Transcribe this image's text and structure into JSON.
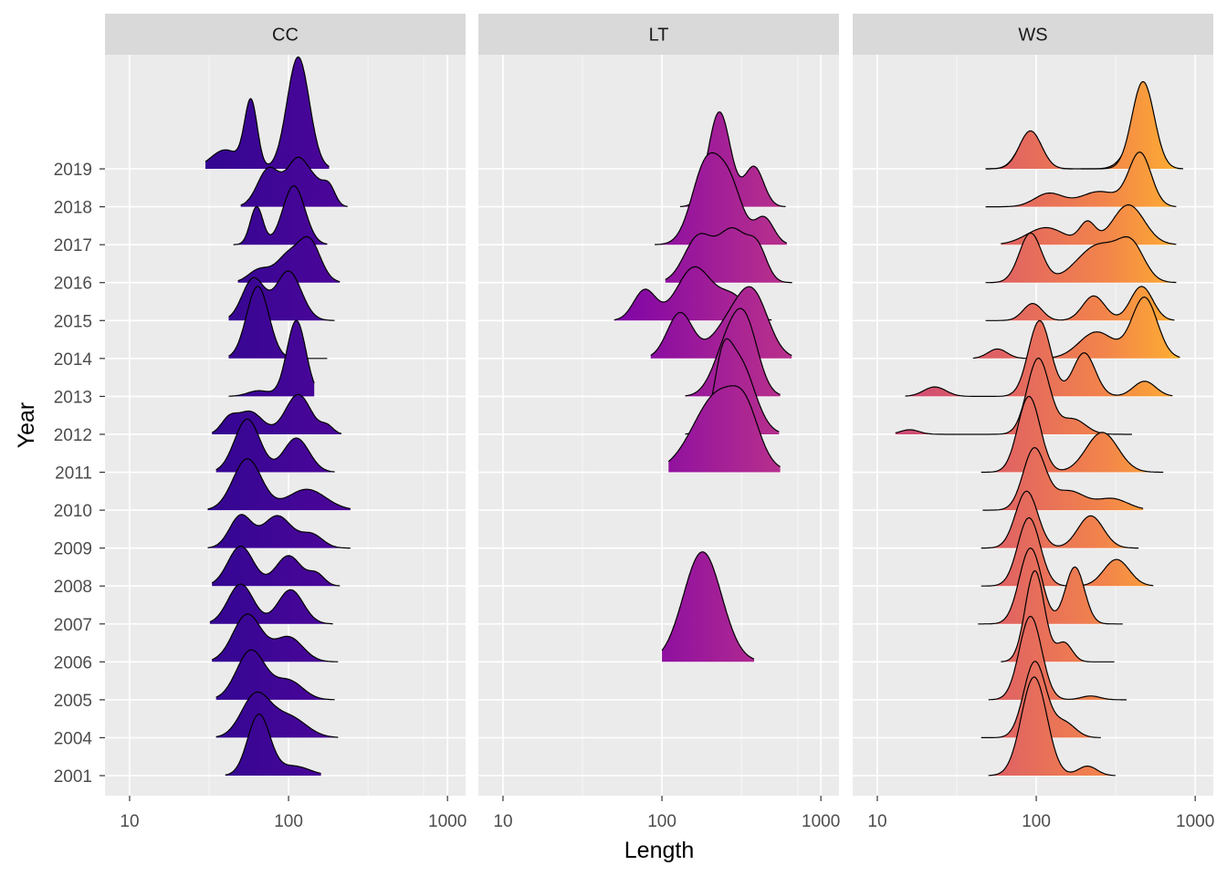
{
  "chart_data": {
    "type": "ridgeline",
    "xlabel": "Length",
    "ylabel": "Year",
    "x_scale": "log10",
    "xlim": [
      7,
      1300
    ],
    "x_ticks": [
      10,
      100,
      1000
    ],
    "x_tick_labels": [
      "10",
      "100",
      "1000"
    ],
    "years": [
      "2001",
      "2004",
      "2005",
      "2006",
      "2007",
      "2008",
      "2009",
      "2010",
      "2011",
      "2012",
      "2013",
      "2014",
      "2015",
      "2016",
      "2017",
      "2018",
      "2019"
    ],
    "colors": {
      "panel_background": "#ebebeb",
      "strip_background": "#d9d9d9",
      "grid": "#ffffff",
      "gradient_low": "#6a00a8",
      "gradient_mid": "#cc4778",
      "gradient_high": "#f0f921"
    },
    "gradient_stops": [
      {
        "offset": 0.0,
        "color": "#0d0887"
      },
      {
        "offset": 0.5,
        "color": "#7e03a8"
      },
      {
        "offset": 0.62,
        "color": "#b12a90"
      },
      {
        "offset": 0.72,
        "color": "#cc4778"
      },
      {
        "offset": 0.82,
        "color": "#e16462"
      },
      {
        "offset": 0.9,
        "color": "#f2844b"
      },
      {
        "offset": 0.95,
        "color": "#fca636"
      },
      {
        "offset": 1.0,
        "color": "#f0f921"
      }
    ],
    "panels": [
      {
        "name": "CC",
        "ridges": [
          {
            "year": "2001",
            "range": [
              40,
              160
            ],
            "modes": [
              [
                65,
                0.07,
                1.6
              ],
              [
                108,
                0.1,
                0.25
              ]
            ]
          },
          {
            "year": "2004",
            "range": [
              35,
              205
            ],
            "modes": [
              [
                62,
                0.09,
                1.1
              ],
              [
                100,
                0.11,
                0.55
              ]
            ]
          },
          {
            "year": "2005",
            "range": [
              35,
              195
            ],
            "modes": [
              [
                58,
                0.09,
                1.3
              ],
              [
                100,
                0.09,
                0.5
              ]
            ]
          },
          {
            "year": "2006",
            "range": [
              33,
              205
            ],
            "modes": [
              [
                55,
                0.09,
                1.25
              ],
              [
                100,
                0.09,
                0.65
              ]
            ]
          },
          {
            "year": "2007",
            "range": [
              32,
              190
            ],
            "modes": [
              [
                50,
                0.08,
                1.05
              ],
              [
                103,
                0.08,
                0.9
              ]
            ]
          },
          {
            "year": "2008",
            "range": [
              33,
              210
            ],
            "modes": [
              [
                50,
                0.08,
                1.05
              ],
              [
                100,
                0.08,
                0.8
              ],
              [
                150,
                0.05,
                0.3
              ]
            ]
          },
          {
            "year": "2009",
            "range": [
              31,
              245
            ],
            "modes": [
              [
                50,
                0.07,
                0.85
              ],
              [
                85,
                0.09,
                0.85
              ],
              [
                140,
                0.07,
                0.35
              ]
            ]
          },
          {
            "year": "2010",
            "range": [
              31,
              245
            ],
            "modes": [
              [
                55,
                0.09,
                1.35
              ],
              [
                130,
                0.12,
                0.55
              ]
            ]
          },
          {
            "year": "2011",
            "range": [
              35,
              195
            ],
            "modes": [
              [
                55,
                0.08,
                1.4
              ],
              [
                112,
                0.08,
                0.9
              ]
            ]
          },
          {
            "year": "2012",
            "range": [
              33,
              215
            ],
            "modes": [
              [
                42,
                0.05,
                0.35
              ],
              [
                57,
                0.08,
                0.6
              ],
              [
                115,
                0.08,
                1.05
              ],
              [
                175,
                0.04,
                0.2
              ]
            ]
          },
          {
            "year": "2013",
            "range": [
              42,
              145
            ],
            "modes": [
              [
                65,
                0.07,
                0.15
              ],
              [
                112,
                0.06,
                2.0
              ]
            ]
          },
          {
            "year": "2014",
            "range": [
              42,
              175
            ],
            "modes": [
              [
                64,
                0.07,
                1.9
              ]
            ]
          },
          {
            "year": "2015",
            "range": [
              42,
              195
            ],
            "modes": [
              [
                60,
                0.07,
                1.1
              ],
              [
                100,
                0.08,
                1.3
              ]
            ]
          },
          {
            "year": "2016",
            "range": [
              48,
              210
            ],
            "modes": [
              [
                66,
                0.07,
                0.35
              ],
              [
                98,
                0.07,
                0.65
              ],
              [
                135,
                0.07,
                1.1
              ]
            ]
          },
          {
            "year": "2017",
            "range": [
              45,
              175
            ],
            "modes": [
              [
                63,
                0.04,
                1.0
              ],
              [
                108,
                0.07,
                1.55
              ]
            ]
          },
          {
            "year": "2018",
            "range": [
              50,
              235
            ],
            "modes": [
              [
                75,
                0.07,
                1.0
              ],
              [
                115,
                0.07,
                1.25
              ],
              [
                150,
                0.05,
                0.4
              ],
              [
                180,
                0.04,
                0.5
              ]
            ]
          },
          {
            "year": "2019",
            "range": [
              30,
              180
            ],
            "modes": [
              [
                40,
                0.09,
                0.5
              ],
              [
                58,
                0.04,
                1.75
              ],
              [
                115,
                0.07,
                2.95
              ]
            ]
          }
        ]
      },
      {
        "name": "LT",
        "ridges": [
          {
            "year": "2006",
            "range": [
              100,
              380
            ],
            "modes": [
              [
                180,
                0.12,
                2.9
              ]
            ]
          },
          {
            "year": "2011",
            "range": [
              110,
              555
            ],
            "modes": [
              [
                230,
                0.16,
                2.1
              ],
              [
                340,
                0.08,
                0.8
              ]
            ]
          },
          {
            "year": "2012",
            "range": [
              140,
              545
            ],
            "modes": [
              [
                240,
                0.05,
                1.1
              ],
              [
                300,
                0.1,
                2.0
              ]
            ]
          },
          {
            "year": "2013",
            "range": [
              140,
              555
            ],
            "modes": [
              [
                260,
                0.09,
                1.3
              ],
              [
                340,
                0.08,
                1.6
              ]
            ]
          },
          {
            "year": "2014",
            "range": [
              85,
              655
            ],
            "modes": [
              [
                130,
                0.08,
                1.2
              ],
              [
                250,
                0.1,
                0.7
              ],
              [
                370,
                0.1,
                1.7
              ]
            ]
          },
          {
            "year": "2015",
            "range": [
              50,
              490
            ],
            "modes": [
              [
                78,
                0.07,
                0.8
              ],
              [
                160,
                0.11,
                1.4
              ],
              [
                280,
                0.09,
                0.6
              ]
            ]
          },
          {
            "year": "2016",
            "range": [
              105,
              660
            ],
            "modes": [
              [
                170,
                0.09,
                1.2
              ],
              [
                280,
                0.09,
                1.35
              ],
              [
                400,
                0.06,
                0.8
              ]
            ]
          },
          {
            "year": "2017",
            "range": [
              90,
              610
            ],
            "modes": [
              [
                190,
                0.09,
                2.1
              ],
              [
                270,
                0.08,
                1.4
              ],
              [
                440,
                0.06,
                0.7
              ]
            ]
          },
          {
            "year": "2018",
            "range": [
              130,
              600
            ],
            "modes": [
              [
                230,
                0.07,
                2.5
              ],
              [
                380,
                0.06,
                1.05
              ]
            ]
          }
        ]
      },
      {
        "name": "WS",
        "ridges": [
          {
            "year": "2001",
            "range": [
              50,
              315
            ],
            "modes": [
              [
                97,
                0.08,
                2.6
              ],
              [
                210,
                0.06,
                0.25
              ]
            ]
          },
          {
            "year": "2004",
            "range": [
              45,
              255
            ],
            "modes": [
              [
                98,
                0.07,
                2.0
              ],
              [
                150,
                0.07,
                0.4
              ]
            ]
          },
          {
            "year": "2005",
            "range": [
              50,
              370
            ],
            "modes": [
              [
                92,
                0.07,
                2.2
              ],
              [
                220,
                0.06,
                0.1
              ]
            ]
          },
          {
            "year": "2006",
            "range": [
              60,
              310
            ],
            "modes": [
              [
                98,
                0.06,
                2.4
              ],
              [
                150,
                0.05,
                0.5
              ]
            ]
          },
          {
            "year": "2007",
            "range": [
              43,
              350
            ],
            "modes": [
              [
                92,
                0.07,
                2.0
              ],
              [
                175,
                0.06,
                1.5
              ]
            ]
          },
          {
            "year": "2008",
            "range": [
              45,
              545
            ],
            "modes": [
              [
                90,
                0.07,
                1.8
              ],
              [
                320,
                0.08,
                0.7
              ]
            ]
          },
          {
            "year": "2009",
            "range": [
              45,
              440
            ],
            "modes": [
              [
                87,
                0.07,
                1.5
              ],
              [
                220,
                0.08,
                0.85
              ]
            ]
          },
          {
            "year": "2010",
            "range": [
              46,
              470
            ],
            "modes": [
              [
                97,
                0.07,
                1.6
              ],
              [
                160,
                0.1,
                0.5
              ],
              [
                300,
                0.1,
                0.3
              ]
            ]
          },
          {
            "year": "2011",
            "range": [
              45,
              630
            ],
            "modes": [
              [
                90,
                0.07,
                2.0
              ],
              [
                260,
                0.1,
                1.05
              ]
            ]
          },
          {
            "year": "2012",
            "range": [
              13,
              400
            ],
            "modes": [
              [
                16,
                0.06,
                0.12
              ],
              [
                103,
                0.07,
                2.0
              ],
              [
                170,
                0.08,
                0.4
              ]
            ]
          },
          {
            "year": "2013",
            "range": [
              15,
              720
            ],
            "modes": [
              [
                23,
                0.07,
                0.25
              ],
              [
                105,
                0.07,
                2.0
              ],
              [
                200,
                0.07,
                1.15
              ],
              [
                480,
                0.07,
                0.4
              ]
            ]
          },
          {
            "year": "2014",
            "range": [
              40,
              800
            ],
            "modes": [
              [
                57,
                0.06,
                0.25
              ],
              [
                240,
                0.11,
                0.7
              ],
              [
                480,
                0.08,
                1.6
              ]
            ]
          },
          {
            "year": "2015",
            "range": [
              48,
              740
            ],
            "modes": [
              [
                95,
                0.06,
                0.45
              ],
              [
                230,
                0.07,
                0.65
              ],
              [
                460,
                0.07,
                0.9
              ]
            ]
          },
          {
            "year": "2016",
            "range": [
              48,
              760
            ],
            "modes": [
              [
                92,
                0.07,
                1.3
              ],
              [
                250,
                0.14,
                1.0
              ],
              [
                400,
                0.08,
                0.8
              ]
            ]
          },
          {
            "year": "2017",
            "range": [
              60,
              760
            ],
            "modes": [
              [
                115,
                0.12,
                0.45
              ],
              [
                210,
                0.05,
                0.55
              ],
              [
                380,
                0.1,
                1.05
              ]
            ]
          },
          {
            "year": "2018",
            "range": [
              48,
              760
            ],
            "modes": [
              [
                120,
                0.09,
                0.35
              ],
              [
                250,
                0.12,
                0.4
              ],
              [
                450,
                0.07,
                1.4
              ]
            ]
          },
          {
            "year": "2019",
            "range": [
              48,
              820
            ],
            "modes": [
              [
                90,
                0.07,
                0.85
              ],
              [
                450,
                0.08,
                1.0
              ]
            ]
          },
          {
            "year": "2019",
            "range": [
              48,
              170
            ],
            "modes": [
              [
                92,
                0.07,
                1.0
              ]
            ],
            "overlay": true
          },
          {
            "year": "2019",
            "range": [
              190,
              840
            ],
            "modes": [
              [
                470,
                0.07,
                2.3
              ]
            ],
            "overlay": true
          }
        ]
      }
    ]
  }
}
